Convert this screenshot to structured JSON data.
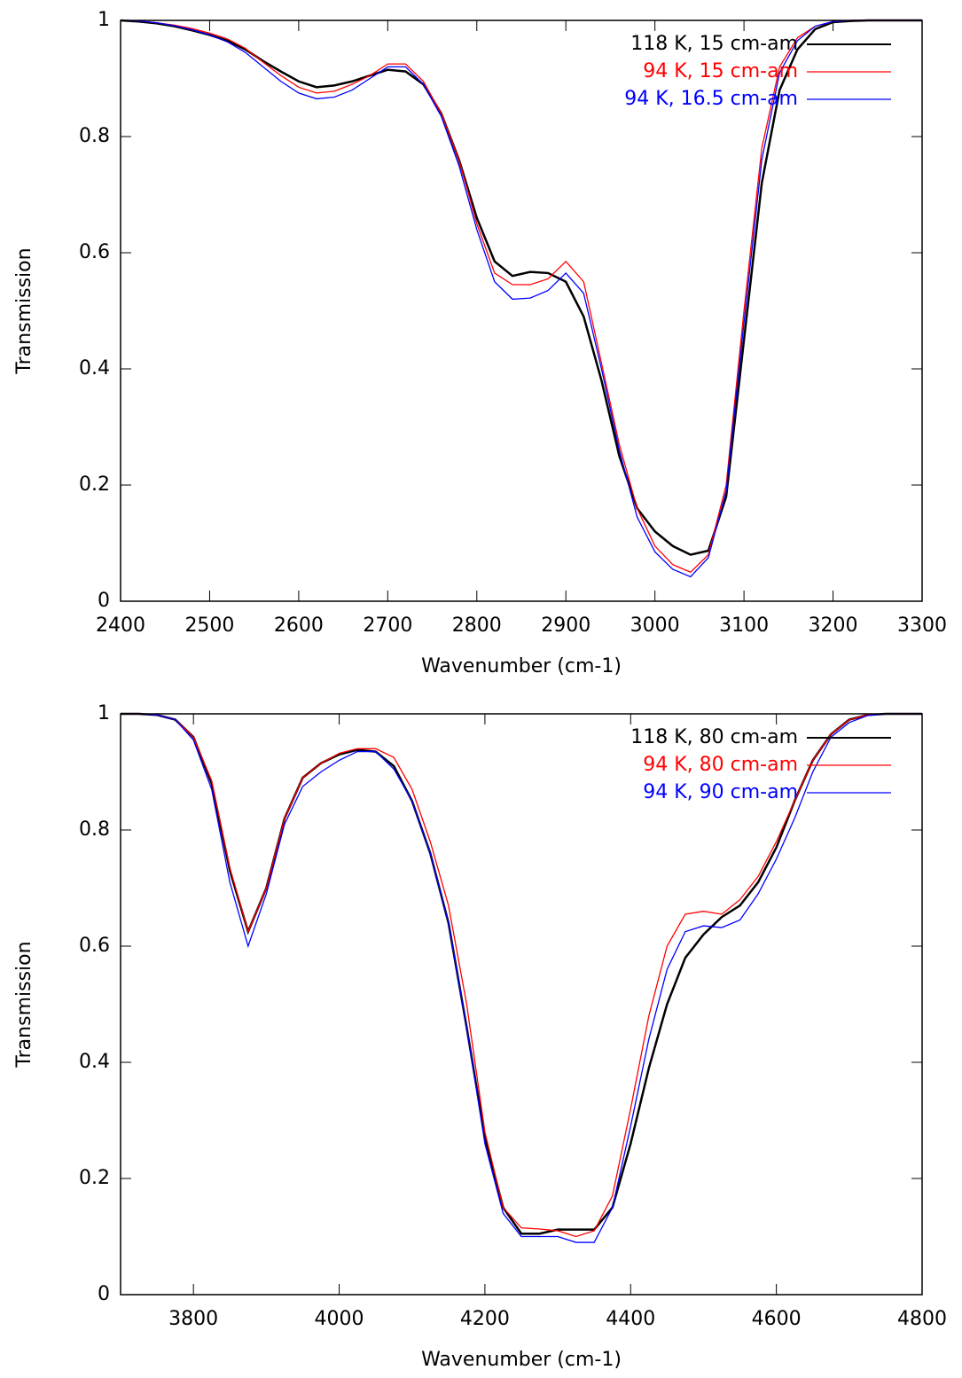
{
  "chart_data": [
    {
      "type": "line",
      "xlabel": "Wavenumber (cm-1)",
      "ylabel": "Transmission",
      "xlim": [
        2400,
        3300
      ],
      "ylim": [
        0,
        1
      ],
      "xticks": [
        2400,
        2500,
        2600,
        2700,
        2800,
        2900,
        3000,
        3100,
        3200,
        3300
      ],
      "yticks": [
        0,
        0.2,
        0.4,
        0.6,
        0.8,
        1
      ],
      "legend": "top right",
      "x": [
        2400,
        2420,
        2440,
        2460,
        2480,
        2500,
        2520,
        2540,
        2560,
        2580,
        2600,
        2620,
        2640,
        2660,
        2680,
        2700,
        2720,
        2740,
        2760,
        2780,
        2800,
        2820,
        2840,
        2860,
        2880,
        2900,
        2920,
        2940,
        2960,
        2980,
        3000,
        3020,
        3040,
        3060,
        3080,
        3100,
        3120,
        3140,
        3160,
        3180,
        3200,
        3220,
        3240,
        3260,
        3280,
        3300
      ],
      "series": [
        {
          "name": "118 K, 15 cm-am",
          "color": "#000000",
          "values": [
            1,
            0.998,
            0.995,
            0.99,
            0.983,
            0.975,
            0.965,
            0.95,
            0.93,
            0.912,
            0.895,
            0.885,
            0.888,
            0.895,
            0.905,
            0.915,
            0.912,
            0.89,
            0.84,
            0.76,
            0.66,
            0.585,
            0.56,
            0.567,
            0.565,
            0.55,
            0.49,
            0.38,
            0.25,
            0.16,
            0.12,
            0.095,
            0.08,
            0.087,
            0.18,
            0.45,
            0.72,
            0.88,
            0.95,
            0.985,
            0.997,
            0.999,
            1,
            1,
            1,
            1
          ]
        },
        {
          "name": "94 K, 15 cm-am",
          "color": "#ff0000",
          "values": [
            1,
            0.999,
            0.996,
            0.992,
            0.986,
            0.978,
            0.968,
            0.952,
            0.928,
            0.905,
            0.885,
            0.875,
            0.878,
            0.89,
            0.905,
            0.925,
            0.925,
            0.895,
            0.84,
            0.76,
            0.65,
            0.565,
            0.545,
            0.545,
            0.555,
            0.585,
            0.55,
            0.41,
            0.27,
            0.16,
            0.095,
            0.063,
            0.05,
            0.08,
            0.2,
            0.5,
            0.78,
            0.92,
            0.97,
            0.99,
            0.998,
            1,
            1,
            1,
            1,
            1
          ]
        },
        {
          "name": "94 K, 16.5 cm-am",
          "color": "#0000ff",
          "values": [
            1,
            0.999,
            0.996,
            0.991,
            0.984,
            0.975,
            0.963,
            0.945,
            0.92,
            0.895,
            0.875,
            0.865,
            0.868,
            0.88,
            0.9,
            0.92,
            0.92,
            0.89,
            0.835,
            0.75,
            0.64,
            0.55,
            0.52,
            0.522,
            0.535,
            0.565,
            0.53,
            0.4,
            0.26,
            0.145,
            0.085,
            0.055,
            0.042,
            0.075,
            0.19,
            0.48,
            0.76,
            0.91,
            0.965,
            0.99,
            0.998,
            1,
            1,
            1,
            1,
            1
          ]
        }
      ]
    },
    {
      "type": "line",
      "xlabel": "Wavenumber (cm-1)",
      "ylabel": "Transmission",
      "xlim": [
        3700,
        4800
      ],
      "ylim": [
        0,
        1
      ],
      "xticks": [
        3800,
        4000,
        4200,
        4400,
        4600,
        4800
      ],
      "yticks": [
        0,
        0.2,
        0.4,
        0.6,
        0.8,
        1
      ],
      "legend": "top right",
      "x": [
        3700,
        3725,
        3750,
        3775,
        3800,
        3825,
        3850,
        3875,
        3900,
        3925,
        3950,
        3975,
        4000,
        4025,
        4050,
        4075,
        4100,
        4125,
        4150,
        4175,
        4200,
        4225,
        4250,
        4275,
        4300,
        4325,
        4350,
        4375,
        4400,
        4425,
        4450,
        4475,
        4500,
        4525,
        4550,
        4575,
        4600,
        4625,
        4650,
        4675,
        4700,
        4725,
        4750,
        4775,
        4800
      ],
      "series": [
        {
          "name": "118 K, 80 cm-am",
          "color": "#000000",
          "values": [
            1,
            1,
            0.998,
            0.99,
            0.96,
            0.88,
            0.73,
            0.625,
            0.7,
            0.82,
            0.89,
            0.915,
            0.93,
            0.938,
            0.935,
            0.91,
            0.85,
            0.76,
            0.64,
            0.46,
            0.27,
            0.15,
            0.105,
            0.105,
            0.112,
            0.112,
            0.112,
            0.15,
            0.26,
            0.39,
            0.5,
            0.58,
            0.62,
            0.65,
            0.67,
            0.71,
            0.77,
            0.85,
            0.92,
            0.965,
            0.99,
            0.998,
            1,
            1,
            1
          ]
        },
        {
          "name": "94 K, 80 cm-am",
          "color": "#ff0000",
          "values": [
            1,
            1,
            0.998,
            0.99,
            0.96,
            0.885,
            0.735,
            0.625,
            0.7,
            0.82,
            0.89,
            0.915,
            0.932,
            0.94,
            0.94,
            0.925,
            0.87,
            0.78,
            0.67,
            0.5,
            0.28,
            0.15,
            0.115,
            0.113,
            0.11,
            0.1,
            0.11,
            0.17,
            0.32,
            0.48,
            0.6,
            0.655,
            0.66,
            0.655,
            0.68,
            0.72,
            0.78,
            0.85,
            0.92,
            0.965,
            0.99,
            0.998,
            1,
            1,
            1
          ]
        },
        {
          "name": "94 K, 90 cm-am",
          "color": "#0000ff",
          "values": [
            1,
            1,
            0.998,
            0.99,
            0.955,
            0.87,
            0.71,
            0.6,
            0.69,
            0.81,
            0.875,
            0.9,
            0.92,
            0.935,
            0.935,
            0.905,
            0.85,
            0.76,
            0.64,
            0.46,
            0.26,
            0.14,
            0.1,
            0.1,
            0.1,
            0.09,
            0.09,
            0.15,
            0.29,
            0.44,
            0.56,
            0.625,
            0.635,
            0.632,
            0.645,
            0.69,
            0.75,
            0.82,
            0.9,
            0.96,
            0.985,
            0.997,
            1,
            1,
            1
          ]
        }
      ]
    }
  ]
}
